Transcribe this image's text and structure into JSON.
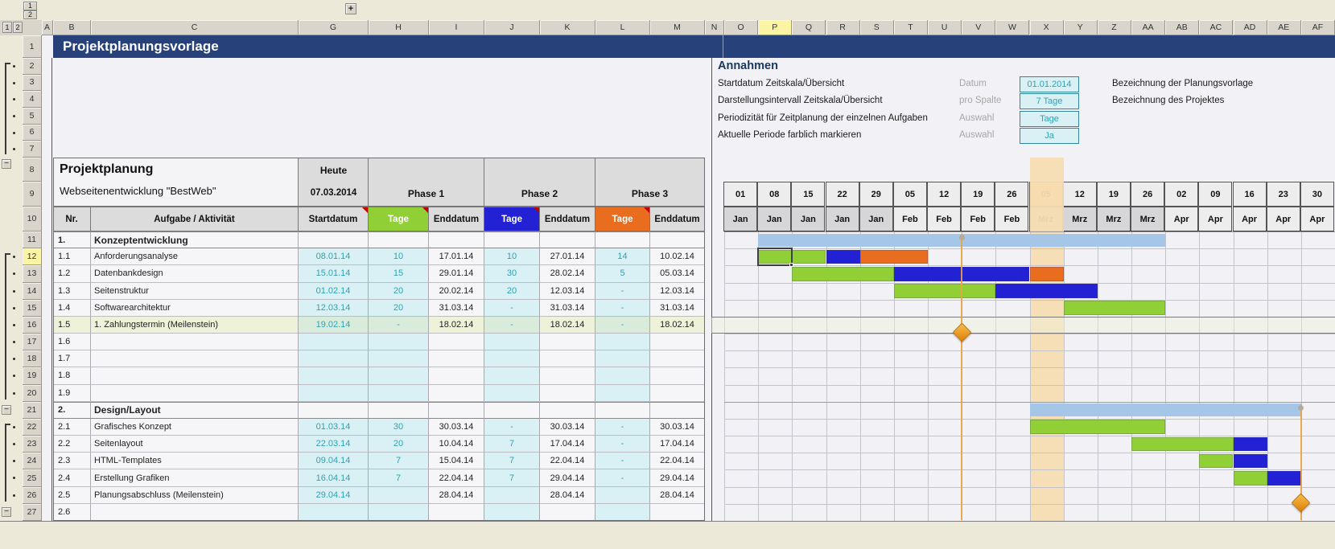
{
  "window": {
    "title": "Projektplanungsvorlage",
    "expand_button": "+",
    "collapse_button": "−",
    "outline_levels": [
      "1",
      "2"
    ]
  },
  "excel": {
    "selected_column": "P",
    "selected_row": "12",
    "column_letters_left": [
      "A",
      "B",
      "C",
      "G",
      "H",
      "I",
      "J",
      "K",
      "L",
      "M",
      "N"
    ],
    "column_letters_gantt": [
      "O",
      "P",
      "Q",
      "R",
      "S",
      "T",
      "U",
      "V",
      "W",
      "X",
      "Y",
      "Z",
      "AA",
      "AB",
      "AC",
      "AD",
      "AE",
      "AF"
    ],
    "row_numbers": [
      "1",
      "2",
      "3",
      "4",
      "5",
      "6",
      "7",
      "8",
      "9",
      "10",
      "11",
      "12",
      "13",
      "14",
      "15",
      "16",
      "17",
      "18",
      "19",
      "20",
      "21",
      "22",
      "23",
      "24",
      "25",
      "26",
      "27"
    ]
  },
  "annahmen": {
    "heading": "Annahmen",
    "rows": [
      {
        "label": "Startdatum Zeitskala/Übersicht",
        "type": "Datum",
        "value": "01.01.2014"
      },
      {
        "label": "Darstellungsintervall Zeitskala/Übersicht",
        "type": "pro Spalte",
        "value": "7 Tage"
      },
      {
        "label": "Periodizität für Zeitplanung der einzelnen Aufgaben",
        "type": "Auswahl",
        "value": "Tage"
      },
      {
        "label": "Aktuelle Periode farblich markieren",
        "type": "Auswahl",
        "value": "Ja"
      }
    ],
    "right_labels": [
      "Bezeichnung der Planungsvorlage",
      "Bezeichnung des Projektes"
    ]
  },
  "plan": {
    "title": "Projektplanung",
    "subtitle": "Webseitenentwicklung \"BestWeb\"",
    "today_label": "Heute",
    "today_date": "07.03.2014",
    "phases": [
      "Phase 1",
      "Phase 2",
      "Phase 3"
    ],
    "headers": {
      "nr": "Nr.",
      "task": "Aufgabe / Aktivität",
      "start": "Startdatum",
      "days": "Tage",
      "end": "Enddatum"
    }
  },
  "rows": [
    {
      "row": 11,
      "nr": "1.",
      "task": "Konzeptentwicklung",
      "type": "section"
    },
    {
      "row": 12,
      "nr": "1.1",
      "task": "Anforderungsanalyse",
      "start": "08.01.14",
      "d1": "10",
      "e1": "17.01.14",
      "d2": "10",
      "e2": "27.01.14",
      "d3": "14",
      "e3": "10.02.14"
    },
    {
      "row": 13,
      "nr": "1.2",
      "task": "Datenbankdesign",
      "start": "15.01.14",
      "d1": "15",
      "e1": "29.01.14",
      "d2": "30",
      "e2": "28.02.14",
      "d3": "5",
      "e3": "05.03.14"
    },
    {
      "row": 14,
      "nr": "1.3",
      "task": "Seitenstruktur",
      "start": "01.02.14",
      "d1": "20",
      "e1": "20.02.14",
      "d2": "20",
      "e2": "12.03.14",
      "d3": "-",
      "e3": "12.03.14"
    },
    {
      "row": 15,
      "nr": "1.4",
      "task": "Softwarearchitektur",
      "start": "12.03.14",
      "d1": "20",
      "e1": "31.03.14",
      "d2": "-",
      "e2": "31.03.14",
      "d3": "-",
      "e3": "31.03.14"
    },
    {
      "row": 16,
      "nr": "1.5",
      "task": "1. Zahlungstermin  (Meilenstein)",
      "start": "19.02.14",
      "d1": "-",
      "e1": "18.02.14",
      "d2": "-",
      "e2": "18.02.14",
      "d3": "-",
      "e3": "18.02.14",
      "highlight": true
    },
    {
      "row": 17,
      "nr": "1.6"
    },
    {
      "row": 18,
      "nr": "1.7"
    },
    {
      "row": 19,
      "nr": "1.8"
    },
    {
      "row": 20,
      "nr": "1.9"
    },
    {
      "row": 21,
      "nr": "2.",
      "task": "Design/Layout",
      "type": "section"
    },
    {
      "row": 22,
      "nr": "2.1",
      "task": "Grafisches Konzept",
      "start": "01.03.14",
      "d1": "30",
      "e1": "30.03.14",
      "d2": "-",
      "e2": "30.03.14",
      "d3": "-",
      "e3": "30.03.14"
    },
    {
      "row": 23,
      "nr": "2.2",
      "task": "Seitenlayout",
      "start": "22.03.14",
      "d1": "20",
      "e1": "10.04.14",
      "d2": "7",
      "e2": "17.04.14",
      "d3": "-",
      "e3": "17.04.14"
    },
    {
      "row": 24,
      "nr": "2.3",
      "task": "HTML-Templates",
      "start": "09.04.14",
      "d1": "7",
      "e1": "15.04.14",
      "d2": "7",
      "e2": "22.04.14",
      "d3": "-",
      "e3": "22.04.14"
    },
    {
      "row": 25,
      "nr": "2.4",
      "task": "Erstellung Grafiken",
      "start": "16.04.14",
      "d1": "7",
      "e1": "22.04.14",
      "d2": "7",
      "e2": "29.04.14",
      "d3": "-",
      "e3": "29.04.14"
    },
    {
      "row": 26,
      "nr": "2.5",
      "task": "Planungsabschluss (Meilenstein)",
      "start": "29.04.14",
      "d1": "",
      "e1": "28.04.14",
      "d2": "",
      "e2": "28.04.14",
      "d3": "",
      "e3": "28.04.14"
    },
    {
      "row": 27,
      "nr": "2.6"
    }
  ],
  "gantt": {
    "week_labels": [
      "01",
      "08",
      "15",
      "22",
      "29",
      "05",
      "12",
      "19",
      "26",
      "05",
      "12",
      "19",
      "26",
      "02",
      "09",
      "16",
      "23",
      "30"
    ],
    "month_labels": [
      "Jan",
      "Jan",
      "Jan",
      "Jan",
      "Jan",
      "Feb",
      "Feb",
      "Feb",
      "Feb",
      "Mrz",
      "Mrz",
      "Mrz",
      "Mrz",
      "Apr",
      "Apr",
      "Apr",
      "Apr",
      "Apr"
    ],
    "current_period_col": 10,
    "bars": [
      {
        "row": 11,
        "start": 2,
        "end": 13,
        "color": "section"
      },
      {
        "row": 12,
        "start": 2,
        "end": 3,
        "color": "green"
      },
      {
        "row": 12,
        "start": 4,
        "end": 4,
        "color": "blue"
      },
      {
        "row": 12,
        "start": 5,
        "end": 6,
        "color": "orange"
      },
      {
        "row": 13,
        "start": 3,
        "end": 5,
        "color": "green"
      },
      {
        "row": 13,
        "start": 6,
        "end": 9,
        "color": "blue"
      },
      {
        "row": 13,
        "start": 10,
        "end": 10,
        "color": "orange"
      },
      {
        "row": 14,
        "start": 6,
        "end": 8,
        "color": "green"
      },
      {
        "row": 14,
        "start": 9,
        "end": 11,
        "color": "blue"
      },
      {
        "row": 15,
        "start": 11,
        "end": 13,
        "color": "green"
      },
      {
        "row": 21,
        "start": 10,
        "end": 17,
        "color": "section"
      },
      {
        "row": 22,
        "start": 10,
        "end": 13,
        "color": "green"
      },
      {
        "row": 23,
        "start": 13,
        "end": 15,
        "color": "green"
      },
      {
        "row": 23,
        "start": 16,
        "end": 16,
        "color": "blue"
      },
      {
        "row": 24,
        "start": 15,
        "end": 15,
        "color": "green"
      },
      {
        "row": 24,
        "start": 16,
        "end": 16,
        "color": "blue"
      },
      {
        "row": 25,
        "start": 16,
        "end": 16,
        "color": "green"
      },
      {
        "row": 25,
        "start": 17,
        "end": 17,
        "color": "blue"
      }
    ],
    "milestones": [
      {
        "name": "1. Zahlungstermin",
        "after_col": 7,
        "from_row": 11,
        "diamond_row": 16
      },
      {
        "name": "Planungsabschluss",
        "after_col": 17,
        "from_row": 21,
        "diamond_row": 26
      }
    ]
  },
  "colors": {
    "title_bar": "#27417a",
    "phase1_green": "#90cf35",
    "phase2_blue": "#2222d4",
    "phase3_orange": "#e96d1f",
    "section_bar_blue": "#a5c6e6",
    "input_teal_text": "#2ea2b4",
    "input_cyan_bg": "#d9f1f4",
    "current_period_tan": "#f5ddb2",
    "current_period_header": "#f3c36b",
    "selection_yellow": "#fbf4a2",
    "milestone_orange": "#eca23f",
    "chrome_beige": "#ece9d8"
  }
}
